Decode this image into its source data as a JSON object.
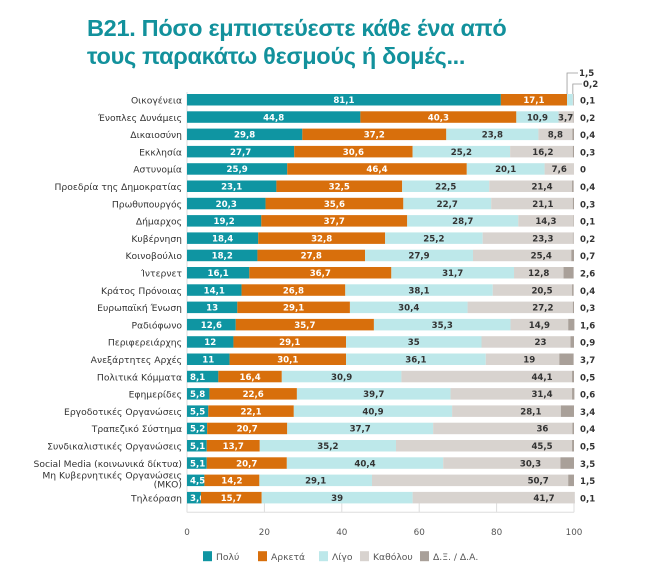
{
  "title_lines": [
    "B21. Πόσο εμπιστεύεστε κάθε ένα από",
    "τους παρακάτω θεσμούς ή δομές..."
  ],
  "chart_data": {
    "type": "bar",
    "orientation": "horizontal",
    "stacked": true,
    "title": "B21. Πόσο εμπιστεύεστε κάθε ένα από τους παρακάτω θεσμούς ή δομές...",
    "xlabel": "",
    "ylabel": "",
    "xlim": [
      0,
      100
    ],
    "xticks": [
      "0",
      "20",
      "40",
      "60",
      "80",
      "100"
    ],
    "grid": true,
    "legend_position": "bottom",
    "categories": [
      "Οικογένεια",
      "Ένοπλες Δυνάμεις",
      "Δικαιοσύνη",
      "Εκκλησία",
      "Αστυνομία",
      "Προεδρία της Δημοκρατίας",
      "Πρωθυπουργός",
      "Δήμαρχος",
      "Κυβέρνηση",
      "Κοινοβούλιο",
      "Ίντερνετ",
      "Κράτος Πρόνοιας",
      "Ευρωπαϊκή Ένωση",
      "Ραδιόφωνο",
      "Περιφερειάρχης",
      "Ανεξάρτητες Αρχές",
      "Πολιτικά Κόμματα",
      "Εφημερίδες",
      "Εργοδοτικές Οργανώσεις",
      "Τραπεζικό Σύστημα",
      "Συνδικαλιστικές Οργανώσεις",
      "Social Media (κοινωνικά δίκτυα)",
      "Μη Κυβερνητικές Οργανώσεις (ΜΚΟ)",
      "Τηλεόραση"
    ],
    "series": [
      {
        "name": "Πολύ",
        "color": "#0f95a2",
        "label_color": "#ffffff",
        "values": [
          81.1,
          44.8,
          29.8,
          27.7,
          25.9,
          23.1,
          20.3,
          19.2,
          18.4,
          18.2,
          16.1,
          14.1,
          13,
          12.6,
          12,
          11,
          8.1,
          5.8,
          5.5,
          5.2,
          5.1,
          5.1,
          4.5,
          3.6
        ],
        "labels": [
          "81,1",
          "44,8",
          "29,8",
          "27,7",
          "25,9",
          "23,1",
          "20,3",
          "19,2",
          "18,4",
          "18,2",
          "16,1",
          "14,1",
          "13",
          "12,6",
          "12",
          "11",
          "8,1",
          "5,8",
          "5,5",
          "5,2",
          "5,1",
          "5,1",
          "4,5",
          "3,6"
        ]
      },
      {
        "name": "Αρκετά",
        "color": "#d86f0c",
        "label_color": "#ffffff",
        "values": [
          17.1,
          40.3,
          37.2,
          30.6,
          46.4,
          32.5,
          35.6,
          37.7,
          32.8,
          27.8,
          36.7,
          26.8,
          29.1,
          35.7,
          29.1,
          30.1,
          16.4,
          22.6,
          22.1,
          20.7,
          13.7,
          20.7,
          14.2,
          15.7
        ],
        "labels": [
          "17,1",
          "40,3",
          "37,2",
          "30,6",
          "46,4",
          "32,5",
          "35,6",
          "37,7",
          "32,8",
          "27,8",
          "36,7",
          "26,8",
          "29,1",
          "35,7",
          "29,1",
          "30,1",
          "16,4",
          "22,6",
          "22,1",
          "20,7",
          "13,7",
          "20,7",
          "14,2",
          "15,7"
        ]
      },
      {
        "name": "Λίγο",
        "color": "#bde8ea",
        "label_color": "#333333",
        "values": [
          1.5,
          10.9,
          23.8,
          25.2,
          20.1,
          22.5,
          22.7,
          28.7,
          25.2,
          27.9,
          31.7,
          38.1,
          30.4,
          35.3,
          35,
          36.1,
          30.9,
          39.7,
          40.9,
          37.7,
          35.2,
          40.4,
          29.1,
          39
        ],
        "labels": [
          "1,5",
          "10,9",
          "23,8",
          "25,2",
          "20,1",
          "22,5",
          "22,7",
          "28,7",
          "25,2",
          "27,9",
          "31,7",
          "38,1",
          "30,4",
          "35,3",
          "35",
          "36,1",
          "30,9",
          "39,7",
          "40,9",
          "37,7",
          "35,2",
          "40,4",
          "29,1",
          "39"
        ]
      },
      {
        "name": "Καθόλου",
        "color": "#d8d3cf",
        "label_color": "#333333",
        "values": [
          0.2,
          3.7,
          8.8,
          16.2,
          7.6,
          21.4,
          21.1,
          14.3,
          23.3,
          25.4,
          12.8,
          20.5,
          27.2,
          14.9,
          23,
          19,
          44.1,
          31.4,
          28.1,
          36,
          45.5,
          30.3,
          50.7,
          41.7
        ],
        "labels": [
          "0,2",
          "3,7",
          "8,8",
          "16,2",
          "7,6",
          "21,4",
          "21,1",
          "14,3",
          "23,3",
          "25,4",
          "12,8",
          "20,5",
          "27,2",
          "14,9",
          "23",
          "19",
          "44,1",
          "31,4",
          "28,1",
          "36",
          "45,5",
          "30,3",
          "50,7",
          "41,7"
        ]
      },
      {
        "name": "Δ.Ξ. / Δ.Α.",
        "color": "#a9a099",
        "label_color": "#333333",
        "values": [
          0.1,
          0.2,
          0.4,
          0.3,
          0,
          0.4,
          0.3,
          0.1,
          0.2,
          0.7,
          2.6,
          0.4,
          0.3,
          1.6,
          0.9,
          3.7,
          0.5,
          0.6,
          3.4,
          0.4,
          0.5,
          3.5,
          1.5,
          0.1
        ],
        "labels": [
          "0,1",
          "0,2",
          "0,4",
          "0,3",
          "0",
          "0,4",
          "0,3",
          "0,1",
          "0,2",
          "0,7",
          "2,6",
          "0,4",
          "0,3",
          "1,6",
          "0,9",
          "3,7",
          "0,5",
          "0,6",
          "3,4",
          "0,4",
          "0,5",
          "3,5",
          "1,5",
          "0,1"
        ]
      }
    ],
    "annotations": [
      "1,5",
      "0,2"
    ]
  }
}
